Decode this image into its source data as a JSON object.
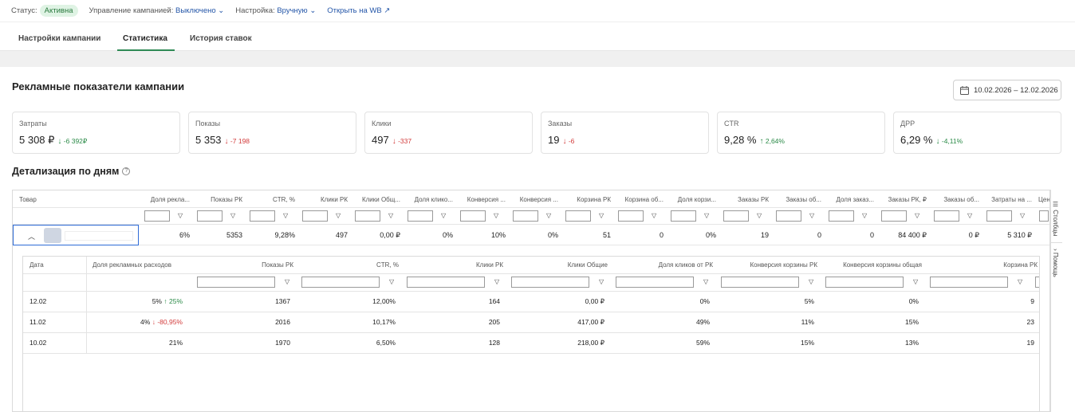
{
  "topbar": {
    "status_label": "Статус:",
    "status_value": "Активна",
    "management_label": "Управление кампанией:",
    "management_value": "Выключено",
    "setting_label": "Настройка:",
    "setting_value": "Вручную",
    "open_wb": "Открыть на WB"
  },
  "tabs": [
    "Настройки кампании",
    "Статистика",
    "История ставок"
  ],
  "section_title": "Рекламные показатели кампании",
  "date_range": "10.02.2026 – 12.02.2026",
  "cards": [
    {
      "label": "Затраты",
      "value": "5 308 ₽",
      "delta": "-6 392₽",
      "trend": "down",
      "color": "#2a8a47"
    },
    {
      "label": "Показы",
      "value": "5 353",
      "delta": "-7 198",
      "trend": "down",
      "color": "#d23b3b"
    },
    {
      "label": "Клики",
      "value": "497",
      "delta": "-337",
      "trend": "down",
      "color": "#d23b3b"
    },
    {
      "label": "Заказы",
      "value": "19",
      "delta": "-6",
      "trend": "down",
      "color": "#d23b3b"
    },
    {
      "label": "CTR",
      "value": "9,28 %",
      "delta": "2,64%",
      "trend": "up",
      "color": "#2a8a47"
    },
    {
      "label": "ДРР",
      "value": "6,29 %",
      "delta": "-4,11%",
      "trend": "down",
      "color": "#2a8a47"
    }
  ],
  "detail_title": "Детализация по дням",
  "outer_table": {
    "first_header": "Товар",
    "headers": [
      "Доля рекла...",
      "Показы РК",
      "CTR, %",
      "Клики РК",
      "Клики Общ...",
      "Доля клико...",
      "Конверсия ...",
      "Конверсия ...",
      "Корзина РК",
      "Корзина об...",
      "Доля корзи...",
      "Заказы РК",
      "Заказы об...",
      "Доля заказ...",
      "Заказы РК, ₽",
      "Заказы об...",
      "Затраты на ...",
      "Цен"
    ],
    "row": [
      "6%",
      "5353",
      "9,28%",
      "497",
      "0,00 ₽",
      "0%",
      "10%",
      "0%",
      "51",
      "0",
      "0%",
      "19",
      "0",
      "0",
      "84 400 ₽",
      "0 ₽",
      "5 310 ₽",
      ""
    ]
  },
  "sidebar": {
    "columns": "Столбцы",
    "help": "Помощь"
  },
  "inner_table": {
    "headers": [
      "Дата",
      "Доля рекламных расходов",
      "Показы РК",
      "CTR, %",
      "Клики РК",
      "Клики Общие",
      "Доля кликов от РК",
      "Конверсия корзины РК",
      "Конверсия корзины общая",
      "Корзина РК"
    ],
    "rows": [
      {
        "date": "12.02",
        "share": "5%",
        "share_delta": "25%",
        "share_trend": "up",
        "values": [
          "1367",
          "12,00%",
          "164",
          "0,00 ₽",
          "0%",
          "5%",
          "0%",
          "9"
        ]
      },
      {
        "date": "11.02",
        "share": "4%",
        "share_delta": "-80,95%",
        "share_trend": "down",
        "values": [
          "2016",
          "10,17%",
          "205",
          "417,00 ₽",
          "49%",
          "11%",
          "15%",
          "23"
        ]
      },
      {
        "date": "10.02",
        "share": "21%",
        "share_delta": "",
        "share_trend": "",
        "values": [
          "1970",
          "6,50%",
          "128",
          "218,00 ₽",
          "59%",
          "15%",
          "13%",
          "19"
        ]
      }
    ]
  }
}
